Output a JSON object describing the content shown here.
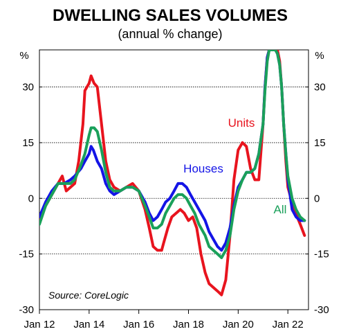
{
  "chart_data": {
    "type": "line",
    "title": "DWELLING SALES VOLUMES",
    "subtitle": "(annual % change)",
    "y_unit_left": "%",
    "y_unit_right": "%",
    "ylim": [
      -30,
      40
    ],
    "yticks": [
      -30,
      -15,
      0,
      15,
      30
    ],
    "xlim": [
      2012.0,
      2022.83
    ],
    "x_ticks": [
      {
        "x": 2012,
        "label": "Jan 12"
      },
      {
        "x": 2014,
        "label": "Jan 14"
      },
      {
        "x": 2016,
        "label": "Jan 16"
      },
      {
        "x": 2018,
        "label": "Jan 18"
      },
      {
        "x": 2020,
        "label": "Jan 20"
      },
      {
        "x": 2022,
        "label": "Jan 22"
      }
    ],
    "grid": true,
    "source": "Source: CoreLogic",
    "series": [
      {
        "name": "Units",
        "color": "#e8141e",
        "points": [
          [
            2012.0,
            -6
          ],
          [
            2012.25,
            -2
          ],
          [
            2012.5,
            1
          ],
          [
            2012.75,
            4
          ],
          [
            2012.92,
            6
          ],
          [
            2013.0,
            4
          ],
          [
            2013.08,
            2
          ],
          [
            2013.25,
            3
          ],
          [
            2013.42,
            4
          ],
          [
            2013.58,
            10
          ],
          [
            2013.75,
            20
          ],
          [
            2013.83,
            29
          ],
          [
            2014.0,
            31
          ],
          [
            2014.08,
            33
          ],
          [
            2014.2,
            31
          ],
          [
            2014.33,
            30
          ],
          [
            2014.5,
            20
          ],
          [
            2014.67,
            10
          ],
          [
            2014.83,
            5
          ],
          [
            2015.0,
            3
          ],
          [
            2015.25,
            2
          ],
          [
            2015.5,
            3
          ],
          [
            2015.75,
            4
          ],
          [
            2016.0,
            2
          ],
          [
            2016.25,
            -3
          ],
          [
            2016.42,
            -8
          ],
          [
            2016.58,
            -13
          ],
          [
            2016.75,
            -14
          ],
          [
            2016.92,
            -14
          ],
          [
            2017.0,
            -12
          ],
          [
            2017.17,
            -8
          ],
          [
            2017.33,
            -5
          ],
          [
            2017.5,
            -4
          ],
          [
            2017.67,
            -3
          ],
          [
            2017.83,
            -4
          ],
          [
            2018.0,
            -6
          ],
          [
            2018.17,
            -5
          ],
          [
            2018.33,
            -8
          ],
          [
            2018.5,
            -15
          ],
          [
            2018.67,
            -20
          ],
          [
            2018.83,
            -23
          ],
          [
            2019.0,
            -24
          ],
          [
            2019.17,
            -25
          ],
          [
            2019.33,
            -26
          ],
          [
            2019.5,
            -22
          ],
          [
            2019.67,
            -10
          ],
          [
            2019.83,
            5
          ],
          [
            2020.0,
            13
          ],
          [
            2020.17,
            15
          ],
          [
            2020.33,
            14
          ],
          [
            2020.5,
            8
          ],
          [
            2020.67,
            5
          ],
          [
            2020.83,
            5
          ],
          [
            2021.0,
            20
          ],
          [
            2021.08,
            30
          ],
          [
            2021.17,
            38
          ],
          [
            2021.25,
            40
          ],
          [
            2021.42,
            40
          ],
          [
            2021.5,
            40
          ],
          [
            2021.58,
            40
          ],
          [
            2021.67,
            37
          ],
          [
            2021.75,
            30
          ],
          [
            2021.83,
            20
          ],
          [
            2021.92,
            10
          ],
          [
            2022.0,
            3
          ],
          [
            2022.25,
            -3
          ],
          [
            2022.5,
            -7
          ],
          [
            2022.67,
            -10
          ]
        ]
      },
      {
        "name": "Houses",
        "color": "#1414e6",
        "points": [
          [
            2012.0,
            -5
          ],
          [
            2012.25,
            -1
          ],
          [
            2012.5,
            2
          ],
          [
            2012.75,
            4
          ],
          [
            2013.0,
            4
          ],
          [
            2013.25,
            5
          ],
          [
            2013.42,
            6
          ],
          [
            2013.67,
            8
          ],
          [
            2013.83,
            10
          ],
          [
            2014.0,
            12
          ],
          [
            2014.08,
            14
          ],
          [
            2014.17,
            13
          ],
          [
            2014.33,
            10
          ],
          [
            2014.5,
            8
          ],
          [
            2014.67,
            4
          ],
          [
            2014.83,
            2
          ],
          [
            2015.0,
            1
          ],
          [
            2015.25,
            2
          ],
          [
            2015.5,
            3
          ],
          [
            2015.75,
            3
          ],
          [
            2016.0,
            2
          ],
          [
            2016.25,
            -1
          ],
          [
            2016.42,
            -4
          ],
          [
            2016.58,
            -6
          ],
          [
            2016.75,
            -5
          ],
          [
            2016.92,
            -3
          ],
          [
            2017.08,
            -1
          ],
          [
            2017.25,
            0
          ],
          [
            2017.42,
            2
          ],
          [
            2017.58,
            4
          ],
          [
            2017.75,
            4
          ],
          [
            2017.92,
            3
          ],
          [
            2018.08,
            1
          ],
          [
            2018.25,
            -1
          ],
          [
            2018.42,
            -3
          ],
          [
            2018.67,
            -6
          ],
          [
            2018.83,
            -9
          ],
          [
            2019.0,
            -11
          ],
          [
            2019.17,
            -13
          ],
          [
            2019.33,
            -14
          ],
          [
            2019.5,
            -12
          ],
          [
            2019.67,
            -8
          ],
          [
            2019.83,
            -2
          ],
          [
            2020.0,
            3
          ],
          [
            2020.17,
            5
          ],
          [
            2020.33,
            7
          ],
          [
            2020.5,
            7
          ],
          [
            2020.67,
            8
          ],
          [
            2020.83,
            12
          ],
          [
            2021.0,
            20
          ],
          [
            2021.08,
            30
          ],
          [
            2021.17,
            38
          ],
          [
            2021.25,
            40
          ],
          [
            2021.42,
            40
          ],
          [
            2021.5,
            40
          ],
          [
            2021.58,
            39
          ],
          [
            2021.67,
            36
          ],
          [
            2021.75,
            30
          ],
          [
            2021.83,
            20
          ],
          [
            2021.92,
            12
          ],
          [
            2022.0,
            5
          ],
          [
            2022.17,
            -3
          ],
          [
            2022.33,
            -5
          ],
          [
            2022.5,
            -6
          ],
          [
            2022.67,
            -6
          ]
        ]
      },
      {
        "name": "All",
        "color": "#1aa05a",
        "points": [
          [
            2012.0,
            -7
          ],
          [
            2012.25,
            -2
          ],
          [
            2012.5,
            1
          ],
          [
            2012.75,
            4
          ],
          [
            2013.0,
            4
          ],
          [
            2013.25,
            4
          ],
          [
            2013.42,
            5
          ],
          [
            2013.67,
            9
          ],
          [
            2013.83,
            12
          ],
          [
            2014.0,
            17
          ],
          [
            2014.08,
            19
          ],
          [
            2014.2,
            19
          ],
          [
            2014.33,
            18
          ],
          [
            2014.5,
            13
          ],
          [
            2014.67,
            7
          ],
          [
            2014.83,
            3
          ],
          [
            2015.0,
            2
          ],
          [
            2015.25,
            2
          ],
          [
            2015.5,
            3
          ],
          [
            2015.75,
            3
          ],
          [
            2016.0,
            2
          ],
          [
            2016.25,
            -2
          ],
          [
            2016.42,
            -5
          ],
          [
            2016.58,
            -8
          ],
          [
            2016.75,
            -8
          ],
          [
            2016.92,
            -7
          ],
          [
            2017.08,
            -4
          ],
          [
            2017.25,
            -2
          ],
          [
            2017.42,
            0
          ],
          [
            2017.58,
            1
          ],
          [
            2017.75,
            1
          ],
          [
            2017.92,
            0
          ],
          [
            2018.08,
            -2
          ],
          [
            2018.25,
            -4
          ],
          [
            2018.42,
            -7
          ],
          [
            2018.67,
            -10
          ],
          [
            2018.83,
            -13
          ],
          [
            2019.0,
            -14
          ],
          [
            2019.17,
            -15
          ],
          [
            2019.33,
            -16
          ],
          [
            2019.5,
            -14
          ],
          [
            2019.67,
            -10
          ],
          [
            2019.83,
            -3
          ],
          [
            2020.0,
            2
          ],
          [
            2020.17,
            5
          ],
          [
            2020.33,
            7
          ],
          [
            2020.5,
            7
          ],
          [
            2020.67,
            8
          ],
          [
            2020.83,
            12
          ],
          [
            2021.0,
            20
          ],
          [
            2021.08,
            29
          ],
          [
            2021.17,
            37
          ],
          [
            2021.25,
            40
          ],
          [
            2021.42,
            40
          ],
          [
            2021.5,
            40
          ],
          [
            2021.58,
            39
          ],
          [
            2021.67,
            36
          ],
          [
            2021.75,
            30
          ],
          [
            2021.83,
            20
          ],
          [
            2021.92,
            12
          ],
          [
            2022.0,
            6
          ],
          [
            2022.17,
            0
          ],
          [
            2022.33,
            -3
          ],
          [
            2022.5,
            -5
          ],
          [
            2022.67,
            -6
          ]
        ]
      }
    ]
  }
}
